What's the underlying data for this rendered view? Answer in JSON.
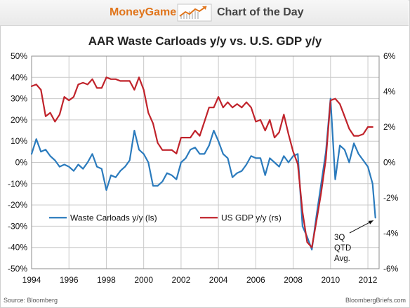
{
  "header": {
    "brand": "MoneyGame",
    "subtitle": "Chart of the Day",
    "logo_icon": "rising-chart-icon"
  },
  "footer": {
    "source": "Source: Bloomberg",
    "site": "BloombergBriefs.com"
  },
  "chart_data": {
    "type": "line",
    "title": "AAR Waste Carloads y/y vs. U.S. GDP y/y",
    "x_ticks": [
      "1994",
      "1996",
      "1998",
      "2000",
      "2002",
      "2004",
      "2006",
      "2008",
      "2010",
      "2012"
    ],
    "xlim": [
      1994,
      2012.6
    ],
    "y_left": {
      "ticks": [
        "50%",
        "40%",
        "30%",
        "20%",
        "10%",
        "0%",
        "-10%",
        "-20%",
        "-30%",
        "-40%",
        "-50%"
      ],
      "ylim": [
        -50,
        50
      ]
    },
    "y_right": {
      "ticks": [
        "6%",
        "4%",
        "2%",
        "0%",
        "-2%",
        "-4%",
        "-6%"
      ],
      "ylim": [
        -6,
        6
      ]
    },
    "grid": true,
    "legend_position": "lower-left",
    "annotation": {
      "lines": [
        "3Q",
        "QTD",
        "Avg."
      ],
      "points_to": {
        "series": "Waste Carloads y/y (ls)",
        "x": 2012.4,
        "y": -26
      }
    },
    "series": [
      {
        "name": "Waste Carloads y/y (ls)",
        "axis": "left",
        "color": "#2b7bbd",
        "x": [
          1994.0,
          1994.25,
          1994.5,
          1994.75,
          1995.0,
          1995.25,
          1995.5,
          1995.75,
          1996.0,
          1996.25,
          1996.5,
          1996.75,
          1997.0,
          1997.25,
          1997.5,
          1997.75,
          1998.0,
          1998.25,
          1998.5,
          1998.75,
          1999.0,
          1999.25,
          1999.5,
          1999.75,
          2000.0,
          2000.25,
          2000.5,
          2000.75,
          2001.0,
          2001.25,
          2001.5,
          2001.75,
          2002.0,
          2002.25,
          2002.5,
          2002.75,
          2003.0,
          2003.25,
          2003.5,
          2003.75,
          2004.0,
          2004.25,
          2004.5,
          2004.75,
          2005.0,
          2005.25,
          2005.5,
          2005.75,
          2006.0,
          2006.25,
          2006.5,
          2006.75,
          2007.0,
          2007.25,
          2007.5,
          2007.75,
          2008.0,
          2008.25,
          2008.5,
          2008.75,
          2009.0,
          2009.25,
          2009.5,
          2009.75,
          2010.0,
          2010.25,
          2010.5,
          2010.75,
          2011.0,
          2011.25,
          2011.5,
          2011.75,
          2012.0,
          2012.25,
          2012.4
        ],
        "values": [
          4,
          11,
          5,
          6,
          3,
          1,
          -2,
          -1,
          -2,
          -4,
          -1,
          -3,
          0,
          4,
          -2,
          -3,
          -13,
          -6,
          -7,
          -4,
          -2,
          1,
          15,
          6,
          4,
          0,
          -11,
          -11,
          -9,
          -5,
          -6,
          -8,
          0,
          2,
          6,
          7,
          4,
          4,
          8,
          15,
          10,
          4,
          2,
          -7,
          -5,
          -4,
          -1,
          3,
          2,
          2,
          -6,
          2,
          0,
          -2,
          3,
          0,
          3,
          4,
          -30,
          -35,
          -41,
          -25,
          -10,
          5,
          30,
          -8,
          8,
          6,
          0,
          9,
          4,
          1,
          -2,
          -10,
          -26
        ]
      },
      {
        "name": "US GDP y/y (rs)",
        "axis": "right",
        "color": "#c0232b",
        "x": [
          1994.0,
          1994.25,
          1994.5,
          1994.75,
          1995.0,
          1995.25,
          1995.5,
          1995.75,
          1996.0,
          1996.25,
          1996.5,
          1996.75,
          1997.0,
          1997.25,
          1997.5,
          1997.75,
          1998.0,
          1998.25,
          1998.5,
          1998.75,
          1999.0,
          1999.25,
          1999.5,
          1999.75,
          2000.0,
          2000.25,
          2000.5,
          2000.75,
          2001.0,
          2001.25,
          2001.5,
          2001.75,
          2002.0,
          2002.25,
          2002.5,
          2002.75,
          2003.0,
          2003.25,
          2003.5,
          2003.75,
          2004.0,
          2004.25,
          2004.5,
          2004.75,
          2005.0,
          2005.25,
          2005.5,
          2005.75,
          2006.0,
          2006.25,
          2006.5,
          2006.75,
          2007.0,
          2007.25,
          2007.5,
          2007.75,
          2008.0,
          2008.25,
          2008.5,
          2008.75,
          2009.0,
          2009.25,
          2009.5,
          2009.75,
          2010.0,
          2010.25,
          2010.5,
          2010.75,
          2011.0,
          2011.25,
          2011.5,
          2011.75,
          2012.0,
          2012.25
        ],
        "values": [
          4.3,
          4.4,
          4.1,
          2.6,
          2.8,
          2.3,
          2.7,
          3.7,
          3.5,
          3.7,
          4.4,
          4.5,
          4.4,
          4.7,
          4.2,
          4.2,
          4.8,
          4.7,
          4.7,
          4.6,
          4.6,
          4.6,
          4.1,
          4.8,
          4.1,
          2.8,
          2.2,
          1.1,
          0.7,
          0.7,
          0.7,
          0.5,
          1.4,
          1.4,
          1.4,
          1.8,
          1.5,
          2.3,
          3.1,
          3.1,
          3.7,
          3.1,
          3.4,
          3.1,
          3.3,
          3.1,
          3.4,
          3.1,
          2.3,
          2.4,
          1.8,
          2.4,
          1.4,
          1.7,
          2.7,
          1.6,
          0.6,
          -0.1,
          -2.8,
          -4.5,
          -4.8,
          -3.3,
          -1.7,
          0.2,
          3.5,
          3.6,
          3.3,
          2.6,
          1.9,
          1.5,
          1.5,
          1.6,
          2.0,
          2.0
        ]
      }
    ]
  }
}
